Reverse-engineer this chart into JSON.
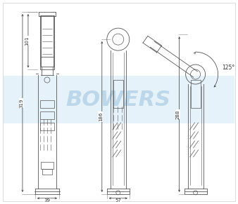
{
  "bg_color": "#ffffff",
  "line_color": "#555555",
  "dim_color": "#333333",
  "watermark_text": "BOWERS",
  "watermark_color": "#b8d4e8",
  "blue_band_color": "#d0e8f5",
  "dim_101": "101",
  "dim_319": "319",
  "dim_39": "39",
  "dim_186": "186",
  "dim_57": "57",
  "dim_288": "288",
  "dim_125": "125°",
  "figw": 3.38,
  "figh": 2.91,
  "dpi": 100
}
